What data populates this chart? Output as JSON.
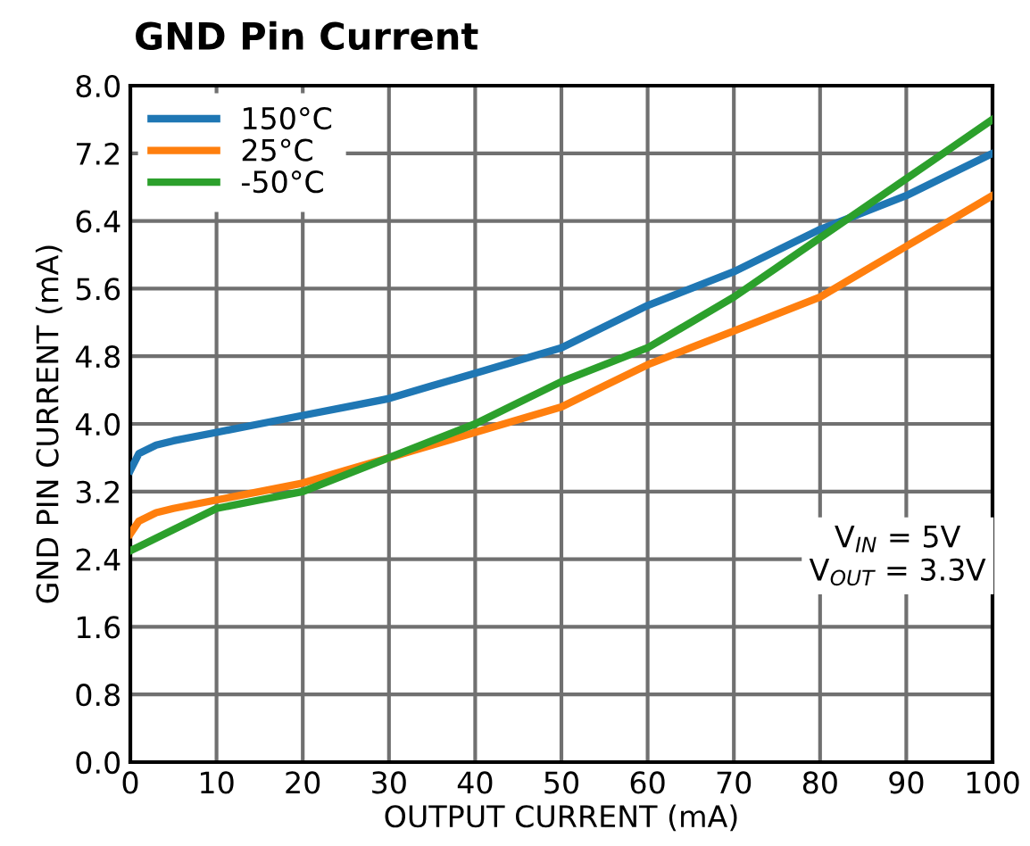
{
  "chart_data": {
    "type": "line",
    "title": "GND Pin Current",
    "xlabel": "OUTPUT CURRENT (mA)",
    "ylabel": "GND PIN CURRENT (mA)",
    "x": [
      0,
      1,
      3,
      5,
      10,
      15,
      20,
      25,
      30,
      35,
      40,
      45,
      50,
      55,
      60,
      65,
      70,
      75,
      80,
      85,
      90,
      95,
      100
    ],
    "series": [
      {
        "name": "150°C",
        "color": "#1f77b4",
        "values": [
          3.45,
          3.65,
          3.75,
          3.8,
          3.9,
          4.0,
          4.1,
          4.2,
          4.3,
          4.45,
          4.6,
          4.75,
          4.9,
          5.15,
          5.4,
          5.6,
          5.8,
          6.05,
          6.3,
          6.5,
          6.7,
          6.95,
          7.2
        ]
      },
      {
        "name": "25°C",
        "color": "#ff7f0e",
        "values": [
          2.7,
          2.85,
          2.95,
          3.0,
          3.1,
          3.2,
          3.3,
          3.45,
          3.6,
          3.75,
          3.9,
          4.05,
          4.2,
          4.45,
          4.7,
          4.9,
          5.1,
          5.3,
          5.5,
          5.8,
          6.1,
          6.4,
          6.7
        ]
      },
      {
        "name": "-50°C",
        "color": "#2ca02c",
        "values": [
          2.5,
          2.55,
          2.65,
          2.75,
          3.0,
          3.1,
          3.2,
          3.4,
          3.6,
          3.8,
          4.0,
          4.25,
          4.5,
          4.7,
          4.9,
          5.2,
          5.5,
          5.85,
          6.2,
          6.55,
          6.9,
          7.25,
          7.6
        ]
      }
    ],
    "xlim": [
      0,
      100
    ],
    "xticks": [
      0,
      10,
      20,
      30,
      40,
      50,
      60,
      70,
      80,
      90,
      100
    ],
    "ylim": [
      0,
      8
    ],
    "yticks": [
      {
        "value": 0,
        "label": "0.0"
      },
      {
        "value": 0.8,
        "label": "0.8"
      },
      {
        "value": 1.6,
        "label": "1.6"
      },
      {
        "value": 2.4,
        "label": "2.4"
      },
      {
        "value": 3.2,
        "label": "3.2"
      },
      {
        "value": 4,
        "label": "4.0"
      },
      {
        "value": 4.8,
        "label": "4.8"
      },
      {
        "value": 5.6,
        "label": "5.6"
      },
      {
        "value": 6.4,
        "label": "6.4"
      },
      {
        "value": 7.2,
        "label": "7.2"
      },
      {
        "value": 8,
        "label": "8.0"
      }
    ],
    "grid": true,
    "legend": "top left",
    "marker": "none",
    "line_style": "solid",
    "annotations": [
      "V$_{IN}$ = 5V\nV$_{OUT}$ = 3.3V"
    ]
  }
}
